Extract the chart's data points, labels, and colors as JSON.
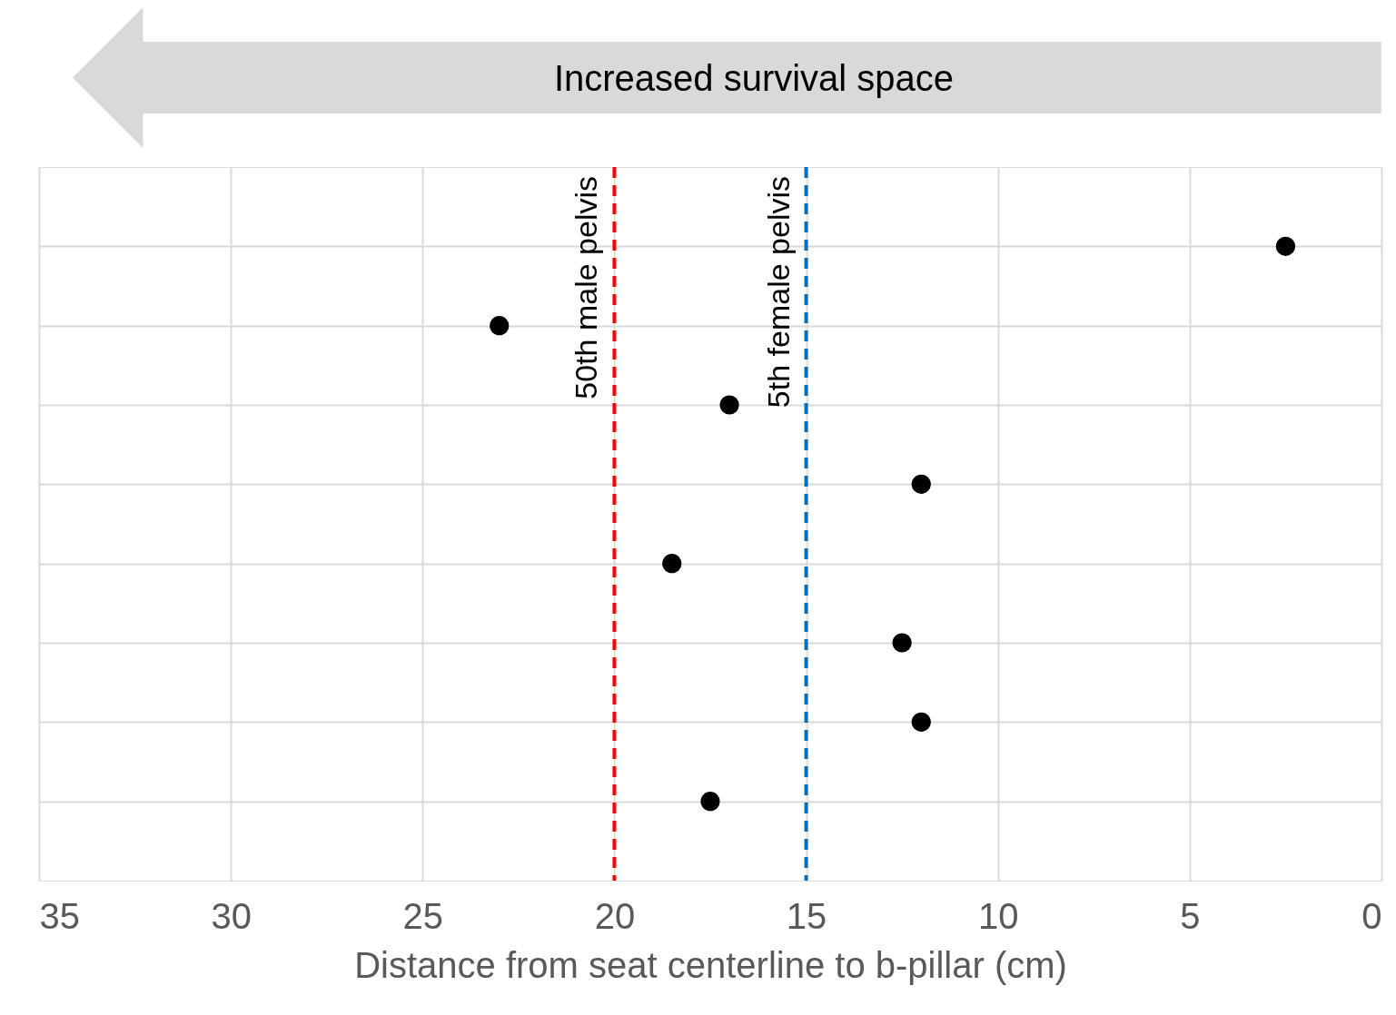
{
  "chart_data": {
    "type": "scatter",
    "orientation": "horizontal",
    "xlabel": "Distance from seat centerline to b-pillar (cm)",
    "annotations": [
      "Increased survival space"
    ],
    "categories": [
      null,
      null,
      null,
      null,
      null,
      null,
      null,
      null
    ],
    "values": [
      2.5,
      23.0,
      17.0,
      12.0,
      18.5,
      12.5,
      12.0,
      17.5
    ],
    "color": "#000000",
    "marker": "circle",
    "xlim": [
      35,
      0
    ],
    "xticks": [
      35,
      30,
      25,
      20,
      15,
      10,
      5,
      0
    ],
    "ref_lines": [
      {
        "axis": "x",
        "value": 20,
        "label": "50th male pelvis",
        "color": "#ff0000",
        "line_style": "dashed"
      },
      {
        "axis": "x",
        "value": 15,
        "label": "5th female pelvis",
        "color": "#0070c0",
        "line_style": "dashed"
      }
    ],
    "grid": true,
    "tick_labels": "x"
  }
}
